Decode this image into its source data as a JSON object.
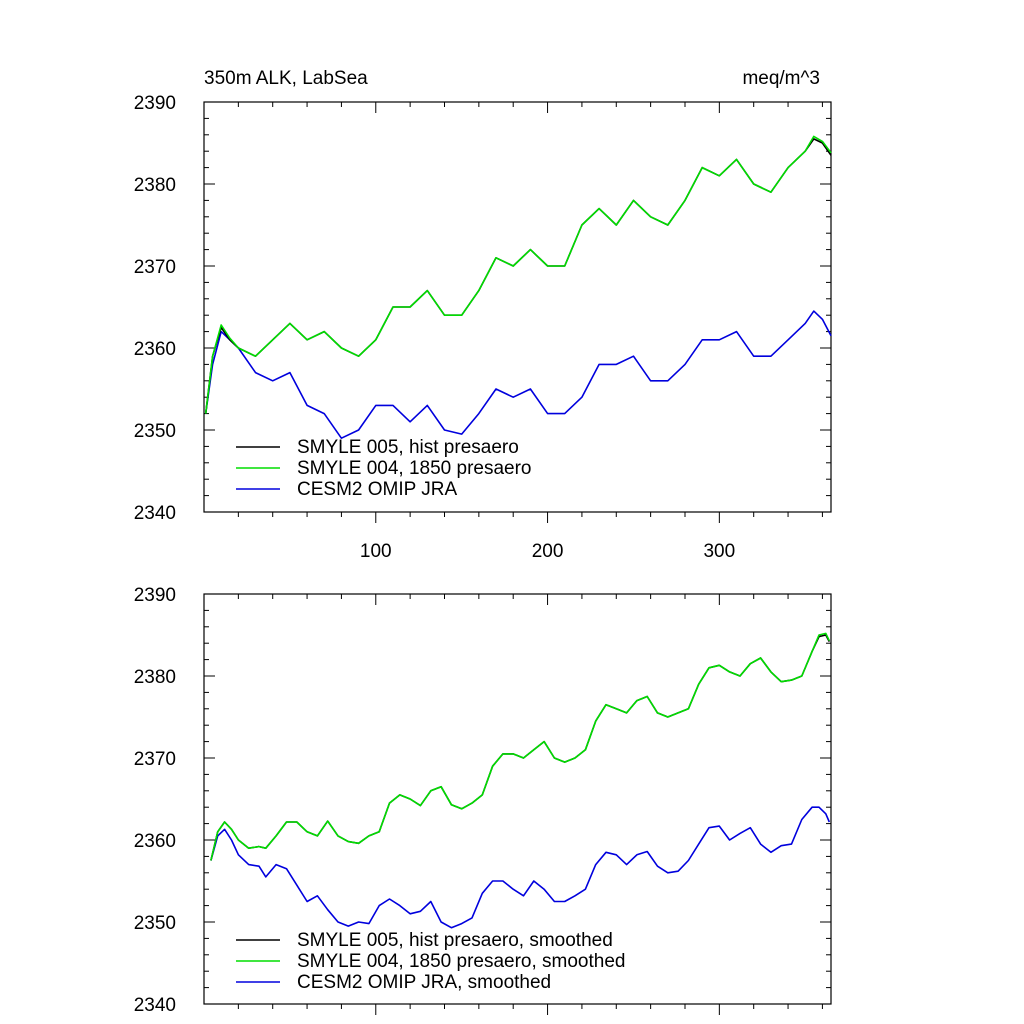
{
  "chart_data": [
    {
      "type": "line",
      "title": "350m ALK, LabSea",
      "units": "meq/m^3",
      "xlim": [
        0,
        365
      ],
      "ylim": [
        2340,
        2390
      ],
      "x_ticks": [
        100,
        200,
        300
      ],
      "x_tick_labels": [
        "100",
        "200",
        "300"
      ],
      "y_ticks": [
        2340,
        2350,
        2360,
        2370,
        2380,
        2390
      ],
      "y_tick_labels": [
        "2340",
        "2350",
        "2360",
        "2370",
        "2380",
        "2390"
      ],
      "legend_position": "bottom-left",
      "series": [
        {
          "name": "SMYLE 005, hist presaero",
          "color": "#000000",
          "x": [
            1,
            5,
            10,
            15,
            20,
            30,
            40,
            50,
            60,
            70,
            80,
            90,
            100,
            110,
            120,
            130,
            140,
            150,
            160,
            170,
            180,
            190,
            200,
            210,
            220,
            230,
            240,
            250,
            260,
            270,
            280,
            290,
            300,
            310,
            320,
            330,
            340,
            350,
            355,
            360,
            365
          ],
          "values": [
            2352,
            2359,
            2362.5,
            2361,
            2360,
            2359,
            2361,
            2363,
            2361,
            2362,
            2360,
            2359,
            2361,
            2365,
            2365,
            2367,
            2364,
            2364,
            2367,
            2371,
            2370,
            2372,
            2370,
            2370,
            2375,
            2377,
            2375,
            2378,
            2376,
            2375,
            2378,
            2382,
            2381,
            2383,
            2380,
            2379,
            2382,
            2384,
            2385.5,
            2385,
            2383.5
          ]
        },
        {
          "name": "SMYLE 004, 1850 presaero",
          "color": "#00dd00",
          "x": [
            1,
            5,
            10,
            15,
            20,
            30,
            40,
            50,
            60,
            70,
            80,
            90,
            100,
            110,
            120,
            130,
            140,
            150,
            160,
            170,
            180,
            190,
            200,
            210,
            220,
            230,
            240,
            250,
            260,
            270,
            280,
            290,
            300,
            310,
            320,
            330,
            340,
            350,
            355,
            360,
            365
          ],
          "values": [
            2352,
            2359,
            2362.8,
            2361.2,
            2360,
            2359,
            2361,
            2363,
            2361,
            2362,
            2360,
            2359,
            2361,
            2365,
            2365,
            2367,
            2364,
            2364,
            2367,
            2371,
            2370,
            2372,
            2370,
            2370,
            2375,
            2377,
            2375,
            2378,
            2376,
            2375,
            2378,
            2382,
            2381,
            2383,
            2380,
            2379,
            2382,
            2384,
            2385.8,
            2385.2,
            2383.8
          ]
        },
        {
          "name": "CESM2 OMIP JRA",
          "color": "#0000dd",
          "x": [
            1,
            5,
            10,
            15,
            20,
            30,
            40,
            50,
            60,
            70,
            80,
            90,
            100,
            110,
            120,
            130,
            140,
            150,
            160,
            170,
            180,
            190,
            200,
            210,
            220,
            230,
            240,
            250,
            260,
            270,
            280,
            290,
            300,
            310,
            320,
            330,
            340,
            350,
            355,
            360,
            365
          ],
          "values": [
            2352,
            2358,
            2362,
            2361,
            2360,
            2357,
            2356,
            2357,
            2353,
            2352,
            2349,
            2350,
            2353,
            2353,
            2351,
            2353,
            2350,
            2349.5,
            2352,
            2355,
            2354,
            2355,
            2352,
            2352,
            2354,
            2358,
            2358,
            2359,
            2356,
            2356,
            2358,
            2361,
            2361,
            2362,
            2359,
            2359,
            2361,
            2363,
            2364.5,
            2363.5,
            2361.5
          ]
        }
      ]
    },
    {
      "type": "line",
      "title": "",
      "xlim": [
        0,
        365
      ],
      "ylim": [
        2340,
        2390
      ],
      "x_ticks": [
        100,
        200,
        300
      ],
      "y_ticks": [
        2340,
        2350,
        2360,
        2370,
        2380,
        2390
      ],
      "y_tick_labels": [
        "2340",
        "2350",
        "2360",
        "2370",
        "2380",
        "2390"
      ],
      "legend_position": "bottom-left",
      "series": [
        {
          "name": "SMYLE 005, hist presaero, smoothed",
          "color": "#000000",
          "x": [
            4,
            8,
            12,
            16,
            20,
            26,
            32,
            36,
            42,
            48,
            54,
            60,
            66,
            72,
            78,
            84,
            90,
            96,
            102,
            108,
            114,
            120,
            126,
            132,
            138,
            144,
            150,
            156,
            162,
            168,
            174,
            180,
            186,
            192,
            198,
            204,
            210,
            216,
            222,
            228,
            234,
            240,
            246,
            252,
            258,
            264,
            270,
            276,
            282,
            288,
            294,
            300,
            306,
            312,
            318,
            324,
            330,
            336,
            342,
            348,
            354,
            358,
            362,
            364
          ],
          "values": [
            2357.5,
            2361,
            2362.2,
            2361.3,
            2360,
            2359,
            2359.2,
            2359,
            2360.5,
            2362.2,
            2362.2,
            2361,
            2360.5,
            2362.3,
            2360.5,
            2359.8,
            2359.6,
            2360.5,
            2361,
            2364.5,
            2365.5,
            2365,
            2364.2,
            2366,
            2366.5,
            2364.3,
            2363.8,
            2364.5,
            2365.5,
            2369,
            2370.5,
            2370.5,
            2370,
            2371,
            2372,
            2370,
            2369.5,
            2370,
            2371,
            2374.5,
            2376.5,
            2376,
            2375.5,
            2377,
            2377.5,
            2375.5,
            2375,
            2375.5,
            2376,
            2379,
            2381,
            2381.3,
            2380.5,
            2380,
            2381.5,
            2382.2,
            2380.5,
            2379.3,
            2379.5,
            2380,
            2383,
            2384.8,
            2385,
            2384.2
          ]
        },
        {
          "name": "SMYLE 004, 1850 presaero, smoothed",
          "color": "#00dd00",
          "x": [
            4,
            8,
            12,
            16,
            20,
            26,
            32,
            36,
            42,
            48,
            54,
            60,
            66,
            72,
            78,
            84,
            90,
            96,
            102,
            108,
            114,
            120,
            126,
            132,
            138,
            144,
            150,
            156,
            162,
            168,
            174,
            180,
            186,
            192,
            198,
            204,
            210,
            216,
            222,
            228,
            234,
            240,
            246,
            252,
            258,
            264,
            270,
            276,
            282,
            288,
            294,
            300,
            306,
            312,
            318,
            324,
            330,
            336,
            342,
            348,
            354,
            358,
            362,
            364
          ],
          "values": [
            2357.5,
            2361,
            2362.2,
            2361.3,
            2360,
            2359,
            2359.2,
            2359,
            2360.5,
            2362.2,
            2362.2,
            2361,
            2360.5,
            2362.3,
            2360.5,
            2359.8,
            2359.6,
            2360.5,
            2361,
            2364.5,
            2365.5,
            2365,
            2364.2,
            2366,
            2366.5,
            2364.3,
            2363.8,
            2364.5,
            2365.5,
            2369,
            2370.5,
            2370.5,
            2370,
            2371,
            2372,
            2370,
            2369.5,
            2370,
            2371,
            2374.5,
            2376.5,
            2376,
            2375.5,
            2377,
            2377.5,
            2375.5,
            2375,
            2375.5,
            2376,
            2379,
            2381,
            2381.3,
            2380.5,
            2380,
            2381.5,
            2382.2,
            2380.5,
            2379.3,
            2379.5,
            2380,
            2383,
            2385,
            2385.2,
            2384.3
          ]
        },
        {
          "name": "CESM2 OMIP JRA, smoothed",
          "color": "#0000dd",
          "x": [
            4,
            8,
            12,
            16,
            20,
            26,
            32,
            36,
            42,
            48,
            54,
            60,
            66,
            72,
            78,
            84,
            90,
            96,
            102,
            108,
            114,
            120,
            126,
            132,
            138,
            144,
            150,
            156,
            162,
            168,
            174,
            180,
            186,
            192,
            198,
            204,
            210,
            216,
            222,
            228,
            234,
            240,
            246,
            252,
            258,
            264,
            270,
            276,
            282,
            288,
            294,
            300,
            306,
            312,
            318,
            324,
            330,
            336,
            342,
            348,
            354,
            358,
            362,
            364
          ],
          "values": [
            2357.5,
            2360.5,
            2361.3,
            2360,
            2358.2,
            2357,
            2356.8,
            2355.5,
            2357,
            2356.5,
            2354.5,
            2352.5,
            2353.2,
            2351.5,
            2350,
            2349.5,
            2350,
            2349.8,
            2352,
            2352.8,
            2352,
            2351,
            2351.3,
            2352.5,
            2350,
            2349.3,
            2349.8,
            2350.5,
            2353.5,
            2355,
            2355,
            2354,
            2353.2,
            2355,
            2354,
            2352.5,
            2352.5,
            2353.2,
            2354,
            2357,
            2358.5,
            2358.2,
            2357,
            2358.2,
            2358.6,
            2356.8,
            2356,
            2356.2,
            2357.5,
            2359.5,
            2361.5,
            2361.7,
            2360,
            2360.8,
            2361.5,
            2359.5,
            2358.5,
            2359.3,
            2359.5,
            2362.5,
            2364,
            2364,
            2363.2,
            2362.2
          ]
        }
      ]
    }
  ]
}
